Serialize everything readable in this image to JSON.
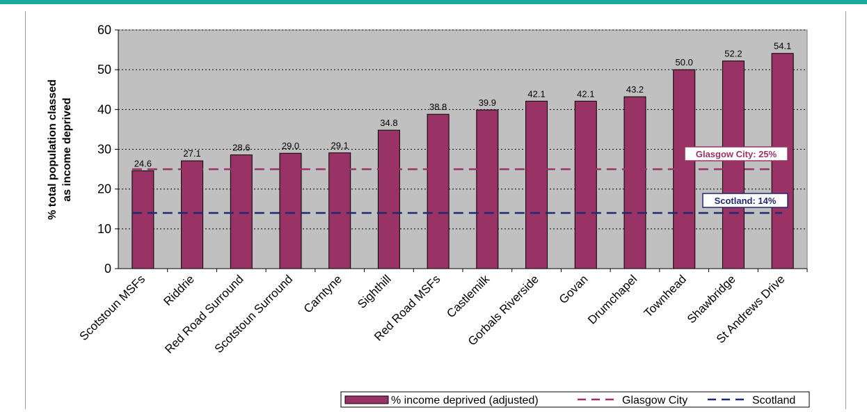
{
  "colors": {
    "accent_rule": "#1aa8a0",
    "bar_fill": "#993366",
    "plot_bg": "#c0c0c0",
    "glasgow_line": "#993366",
    "scotland_line": "#1f2a6e"
  },
  "chart_data": {
    "type": "bar",
    "title": "",
    "xlabel": "",
    "ylabel_lines": [
      "% total population classed",
      "as income deprived"
    ],
    "ylim": [
      0,
      60
    ],
    "yticks": [
      0,
      10,
      20,
      30,
      40,
      50,
      60
    ],
    "grid": true,
    "legend_position": "bottom-right",
    "categories": [
      "Scotstoun MSFs",
      "Riddrie",
      "Red Road Surround",
      "Scotstoun Surround",
      "Carntyne",
      "Sighthill",
      "Red Road MSFs",
      "Castlemilk",
      "Gorbals Riverside",
      "Govan",
      "Drumchapel",
      "Townhead",
      "Shawbridge",
      "St Andrews Drive"
    ],
    "values": [
      24.6,
      27.1,
      28.6,
      29.0,
      29.1,
      34.8,
      38.8,
      39.9,
      42.1,
      42.1,
      43.2,
      50.0,
      52.2,
      54.1
    ],
    "value_labels": [
      "24.6",
      "27.1",
      "28.6",
      "29.0",
      "29.1",
      "34.8",
      "38.8",
      "39.9",
      "42.1",
      "42.1",
      "43.2",
      "50.0",
      "52.2",
      "54.1"
    ],
    "series_name": "% income deprived (adjusted)",
    "reference_lines": [
      {
        "name": "Glasgow City",
        "value": 25,
        "label": "Glasgow City: 25%"
      },
      {
        "name": "Scotland",
        "value": 14,
        "label": "Scotland: 14%"
      }
    ]
  }
}
